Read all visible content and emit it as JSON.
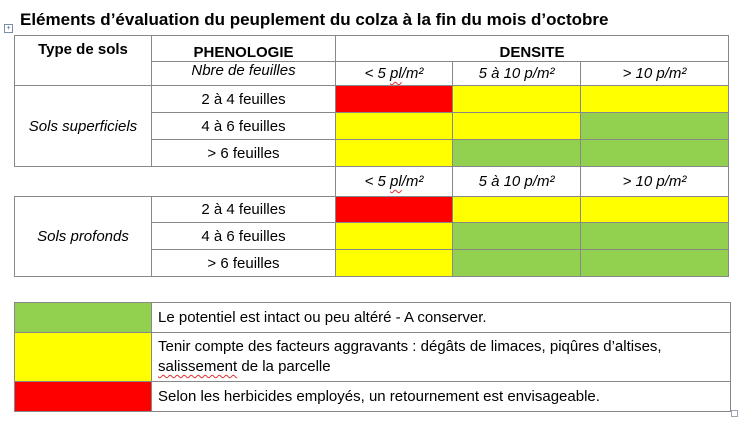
{
  "title": "Eléments d’évaluation du peuplement du colza à la fin du mois d’octobre",
  "header": {
    "col_soil": "Type de sols",
    "col_pheno": "PHENOLOGIE",
    "col_pheno_sub": "Nbre de feuilles",
    "col_density": "DENSITE",
    "density_prefix_1": "< 5 ",
    "density_prefix_1b": "pl",
    "density_suffix_1": "/m²",
    "density_2": "5 à 10 p/m²",
    "density_3": "> 10  p/m²"
  },
  "colors": {
    "red": "#ff0000",
    "yellow": "#ffff00",
    "green": "#92d050"
  },
  "sections": [
    {
      "soil": "Sols superficiels",
      "rows": [
        {
          "stage": "2 à 4 feuilles",
          "cells": [
            "red",
            "yellow",
            "yellow"
          ]
        },
        {
          "stage": "4 à 6 feuilles",
          "cells": [
            "yellow",
            "yellow",
            "green"
          ]
        },
        {
          "stage": "> 6  feuilles",
          "cells": [
            "yellow",
            "green",
            "green"
          ]
        }
      ]
    },
    {
      "soil": "Sols profonds",
      "rows": [
        {
          "stage": "2 à 4 feuilles",
          "cells": [
            "red",
            "yellow",
            "yellow"
          ]
        },
        {
          "stage": "4 à 6 feuilles",
          "cells": [
            "yellow",
            "green",
            "green"
          ]
        },
        {
          "stage": "> 6  feuilles",
          "cells": [
            "yellow",
            "green",
            "green"
          ]
        }
      ]
    }
  ],
  "legend": [
    {
      "color": "green",
      "text": "Le potentiel est intact ou peu altéré - A conserver."
    },
    {
      "color": "yellow",
      "text_1": "Tenir compte des facteurs aggravants : dégâts de limaces, piqûres d’altises,",
      "text_2a": "salissement",
      "text_2b": " de la parcelle"
    },
    {
      "color": "red",
      "text": "Selon les herbicides employés, un retournement est envisageable."
    }
  ]
}
